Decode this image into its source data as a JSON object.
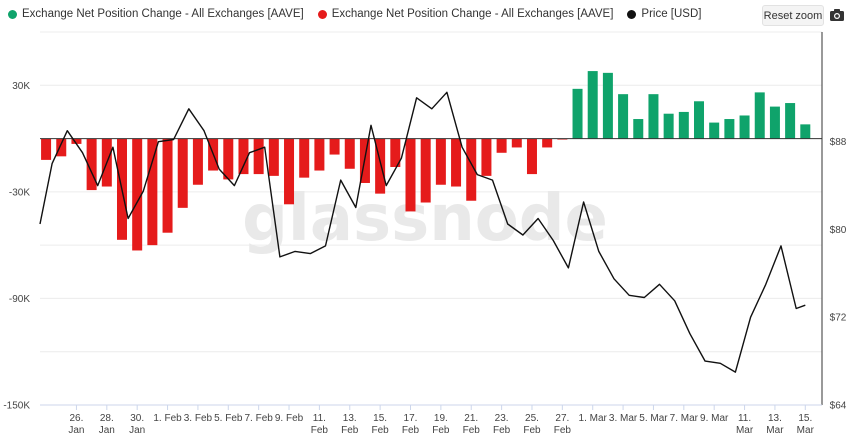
{
  "toolbar": {
    "reset_zoom_label": "Reset zoom",
    "camera_icon": "camera-icon"
  },
  "colors": {
    "positive": "#0fa36b",
    "negative": "#e51b1b",
    "price": "#111111"
  },
  "watermark": "glassnode",
  "chart_data": {
    "type": "bar",
    "title": "",
    "legend": [
      {
        "name": "Exchange Net Position Change - All Exchanges [AAVE]",
        "color": "#0fa36b"
      },
      {
        "name": "Exchange Net Position Change - All Exchanges [AAVE]",
        "color": "#e51b1b"
      },
      {
        "name": "Price [USD]",
        "color": "#111111"
      }
    ],
    "left_axis": {
      "ylim": [
        -150000,
        60000
      ],
      "ticks": [
        -150000,
        -90000,
        -30000,
        30000
      ],
      "tick_labels": [
        "-150K",
        "-90K",
        "-30K",
        "30K"
      ]
    },
    "right_axis": {
      "ylim": [
        64,
        98
      ],
      "ticks": [
        64,
        72,
        80,
        88
      ],
      "tick_labels": [
        "$64",
        "$72",
        "$80",
        "$88"
      ]
    },
    "x_labels": [
      {
        "day": 3,
        "label": [
          "26.",
          "Jan"
        ]
      },
      {
        "day": 5,
        "label": [
          "28.",
          "Jan"
        ]
      },
      {
        "day": 7,
        "label": [
          "30.",
          "Jan"
        ]
      },
      {
        "day": 9,
        "label": [
          "1. Feb"
        ]
      },
      {
        "day": 11,
        "label": [
          "3. Feb"
        ]
      },
      {
        "day": 13,
        "label": [
          "5. Feb"
        ]
      },
      {
        "day": 15,
        "label": [
          "7. Feb"
        ]
      },
      {
        "day": 17,
        "label": [
          "9. Feb"
        ]
      },
      {
        "day": 19,
        "label": [
          "11.",
          "Feb"
        ]
      },
      {
        "day": 21,
        "label": [
          "13.",
          "Feb"
        ]
      },
      {
        "day": 23,
        "label": [
          "15.",
          "Feb"
        ]
      },
      {
        "day": 25,
        "label": [
          "17.",
          "Feb"
        ]
      },
      {
        "day": 27,
        "label": [
          "19.",
          "Feb"
        ]
      },
      {
        "day": 29,
        "label": [
          "21.",
          "Feb"
        ]
      },
      {
        "day": 31,
        "label": [
          "23.",
          "Feb"
        ]
      },
      {
        "day": 33,
        "label": [
          "25.",
          "Feb"
        ]
      },
      {
        "day": 35,
        "label": [
          "27.",
          "Feb"
        ]
      },
      {
        "day": 37,
        "label": [
          "1. Mar"
        ]
      },
      {
        "day": 39,
        "label": [
          "3. Mar"
        ]
      },
      {
        "day": 41,
        "label": [
          "5. Mar"
        ]
      },
      {
        "day": 43,
        "label": [
          "7. Mar"
        ]
      },
      {
        "day": 45,
        "label": [
          "9. Mar"
        ]
      },
      {
        "day": 47,
        "label": [
          "11.",
          "Mar"
        ]
      },
      {
        "day": 49,
        "label": [
          "13.",
          "Mar"
        ]
      },
      {
        "day": 51,
        "label": [
          "15.",
          "Mar"
        ]
      }
    ],
    "day_range": [
      0.6,
      52.1
    ],
    "net_position": [
      {
        "day": 1,
        "value": -12000
      },
      {
        "day": 2,
        "value": -10000
      },
      {
        "day": 3,
        "value": -3000
      },
      {
        "day": 4,
        "value": -29000
      },
      {
        "day": 5,
        "value": -27000
      },
      {
        "day": 6,
        "value": -57000
      },
      {
        "day": 7,
        "value": -63000
      },
      {
        "day": 8,
        "value": -60000
      },
      {
        "day": 9,
        "value": -53000
      },
      {
        "day": 10,
        "value": -39000
      },
      {
        "day": 11,
        "value": -26000
      },
      {
        "day": 12,
        "value": -18000
      },
      {
        "day": 13,
        "value": -23000
      },
      {
        "day": 14,
        "value": -20000
      },
      {
        "day": 15,
        "value": -20000
      },
      {
        "day": 16,
        "value": -21000
      },
      {
        "day": 17,
        "value": -37000
      },
      {
        "day": 18,
        "value": -22000
      },
      {
        "day": 19,
        "value": -18000
      },
      {
        "day": 20,
        "value": -9000
      },
      {
        "day": 21,
        "value": -17000
      },
      {
        "day": 22,
        "value": -25000
      },
      {
        "day": 23,
        "value": -31000
      },
      {
        "day": 24,
        "value": -16000
      },
      {
        "day": 25,
        "value": -41000
      },
      {
        "day": 26,
        "value": -36000
      },
      {
        "day": 27,
        "value": -26000
      },
      {
        "day": 28,
        "value": -27000
      },
      {
        "day": 29,
        "value": -35000
      },
      {
        "day": 30,
        "value": -21000
      },
      {
        "day": 31,
        "value": -8000
      },
      {
        "day": 32,
        "value": -5000
      },
      {
        "day": 33,
        "value": -20000
      },
      {
        "day": 34,
        "value": -5000
      },
      {
        "day": 35,
        "value": -500
      },
      {
        "day": 36,
        "value": 28000
      },
      {
        "day": 37,
        "value": 38000
      },
      {
        "day": 38,
        "value": 37000
      },
      {
        "day": 39,
        "value": 25000
      },
      {
        "day": 40,
        "value": 11000
      },
      {
        "day": 41,
        "value": 25000
      },
      {
        "day": 42,
        "value": 14000
      },
      {
        "day": 43,
        "value": 15000
      },
      {
        "day": 44,
        "value": 21000
      },
      {
        "day": 45,
        "value": 9000
      },
      {
        "day": 46,
        "value": 11000
      },
      {
        "day": 47,
        "value": 13000
      },
      {
        "day": 48,
        "value": 26000
      },
      {
        "day": 49,
        "value": 18000
      },
      {
        "day": 50,
        "value": 20000
      },
      {
        "day": 51,
        "value": 8000
      }
    ],
    "price": [
      {
        "day": 0.6,
        "value": 80.5
      },
      {
        "day": 1.4,
        "value": 86.0
      },
      {
        "day": 2.4,
        "value": 89.0
      },
      {
        "day": 3.4,
        "value": 87.0
      },
      {
        "day": 4.4,
        "value": 84.0
      },
      {
        "day": 5.4,
        "value": 87.5
      },
      {
        "day": 6.4,
        "value": 81.0
      },
      {
        "day": 7.4,
        "value": 83.5
      },
      {
        "day": 8.4,
        "value": 88.0
      },
      {
        "day": 9.4,
        "value": 88.2
      },
      {
        "day": 10.4,
        "value": 91.0
      },
      {
        "day": 11.4,
        "value": 89.0
      },
      {
        "day": 12.4,
        "value": 85.5
      },
      {
        "day": 13.4,
        "value": 84.0
      },
      {
        "day": 14.4,
        "value": 87.0
      },
      {
        "day": 15.4,
        "value": 87.5
      },
      {
        "day": 16.4,
        "value": 77.5
      },
      {
        "day": 17.4,
        "value": 78.0
      },
      {
        "day": 18.4,
        "value": 77.8
      },
      {
        "day": 19.4,
        "value": 78.5
      },
      {
        "day": 20.4,
        "value": 84.5
      },
      {
        "day": 21.4,
        "value": 82.0
      },
      {
        "day": 22.4,
        "value": 89.5
      },
      {
        "day": 23.4,
        "value": 84.0
      },
      {
        "day": 24.4,
        "value": 86.5
      },
      {
        "day": 25.4,
        "value": 92.0
      },
      {
        "day": 26.4,
        "value": 91.0
      },
      {
        "day": 27.4,
        "value": 92.5
      },
      {
        "day": 28.4,
        "value": 87.5
      },
      {
        "day": 29.4,
        "value": 85.0
      },
      {
        "day": 30.4,
        "value": 84.5
      },
      {
        "day": 31.4,
        "value": 80.5
      },
      {
        "day": 32.4,
        "value": 79.5
      },
      {
        "day": 33.4,
        "value": 81.0
      },
      {
        "day": 34.4,
        "value": 79.0
      },
      {
        "day": 35.4,
        "value": 76.5
      },
      {
        "day": 36.4,
        "value": 82.5
      },
      {
        "day": 37.4,
        "value": 78.0
      },
      {
        "day": 38.4,
        "value": 75.5
      },
      {
        "day": 39.4,
        "value": 74.0
      },
      {
        "day": 40.4,
        "value": 73.8
      },
      {
        "day": 41.4,
        "value": 75.0
      },
      {
        "day": 42.4,
        "value": 73.5
      },
      {
        "day": 43.4,
        "value": 70.5
      },
      {
        "day": 44.4,
        "value": 68.0
      },
      {
        "day": 45.4,
        "value": 67.8
      },
      {
        "day": 46.4,
        "value": 67.0
      },
      {
        "day": 47.4,
        "value": 72.0
      },
      {
        "day": 48.4,
        "value": 75.0
      },
      {
        "day": 49.4,
        "value": 78.5
      },
      {
        "day": 50.4,
        "value": 72.8
      },
      {
        "day": 51.0,
        "value": 73.1
      }
    ]
  }
}
